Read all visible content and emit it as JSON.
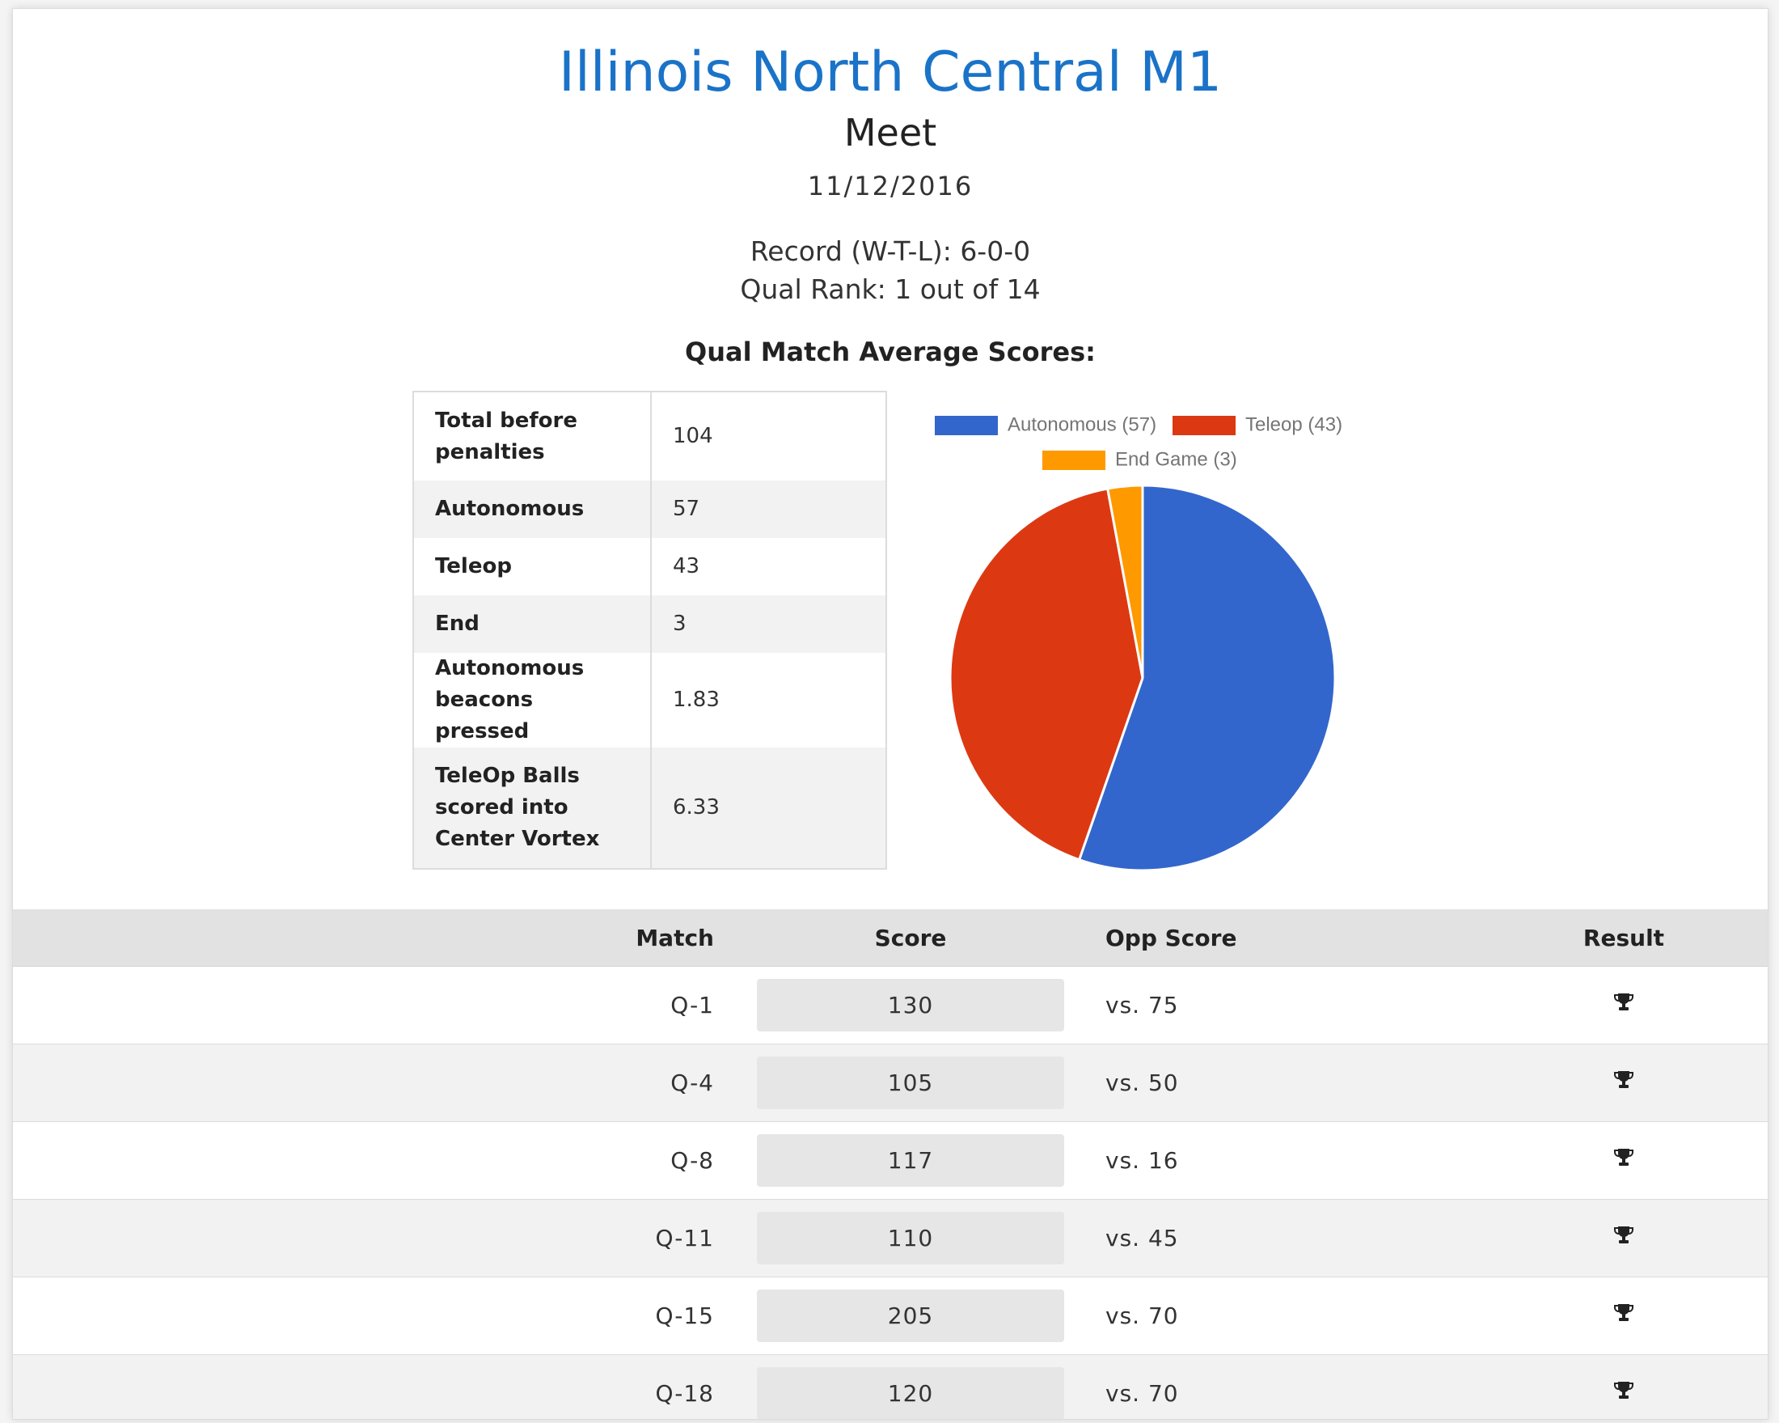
{
  "header": {
    "title": "Illinois North Central M1",
    "subtitle": "Meet",
    "date": "11/12/2016",
    "record": "Record (W-T-L): 6-0-0",
    "rank": "Qual Rank: 1 out of 14",
    "section_title": "Qual Match Average Scores:"
  },
  "stats": [
    {
      "label": "Total before penalties",
      "value": "104"
    },
    {
      "label": "Autonomous",
      "value": "57"
    },
    {
      "label": "Teleop",
      "value": "43"
    },
    {
      "label": "End",
      "value": "3"
    },
    {
      "label": "Autonomous beacons pressed",
      "value": "1.83"
    },
    {
      "label": "TeleOp Balls scored into Center Vortex",
      "value": "6.33"
    }
  ],
  "chart_data": {
    "type": "pie",
    "title": "",
    "legend_position": "top",
    "slices": [
      {
        "name": "Autonomous (57)",
        "value": 57,
        "color": "#3366cc"
      },
      {
        "name": "Teleop (43)",
        "value": 43,
        "color": "#dc3912"
      },
      {
        "name": "End Game (3)",
        "value": 3,
        "color": "#ff9900"
      }
    ]
  },
  "matches": {
    "headers": {
      "match": "Match",
      "score": "Score",
      "opp": "Opp Score",
      "result": "Result"
    },
    "rows": [
      {
        "match": "Q-1",
        "score": "130",
        "opp": "vs. 75",
        "result": "trophy-icon"
      },
      {
        "match": "Q-4",
        "score": "105",
        "opp": "vs. 50",
        "result": "trophy-icon"
      },
      {
        "match": "Q-8",
        "score": "117",
        "opp": "vs. 16",
        "result": "trophy-icon"
      },
      {
        "match": "Q-11",
        "score": "110",
        "opp": "vs. 45",
        "result": "trophy-icon"
      },
      {
        "match": "Q-15",
        "score": "205",
        "opp": "vs. 70",
        "result": "trophy-icon"
      },
      {
        "match": "Q-18",
        "score": "120",
        "opp": "vs. 70",
        "result": "trophy-icon"
      }
    ]
  }
}
